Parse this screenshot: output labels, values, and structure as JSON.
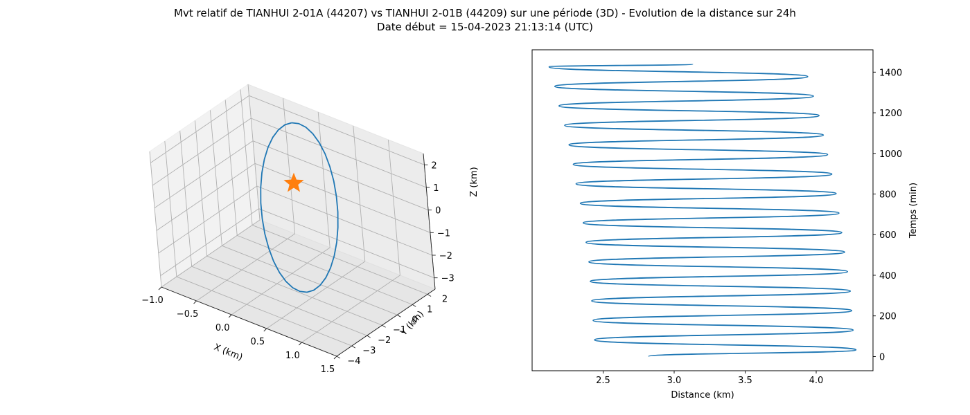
{
  "figure": {
    "title_line1": "Mvt relatif de TIANHUI 2-01A (44207) vs TIANHUI 2-01B (44209) sur une période (3D) - Evolution de la distance sur 24h",
    "title_line2": "Date début = 15-04-2023 21:13:14 (UTC)"
  },
  "chart_data": [
    {
      "type": "line3d",
      "title": "",
      "xlabel": "X (km)",
      "ylabel": "Y (km)",
      "zlabel": "Z (km)",
      "xticks": [
        "−1.0",
        "−0.5",
        "0.0",
        "0.5",
        "1.0",
        "1.5"
      ],
      "yticks": [
        "−4",
        "−3",
        "−2",
        "−1",
        "0",
        "1",
        "2"
      ],
      "zticks": [
        "−3",
        "−2",
        "−1",
        "0",
        "1",
        "2"
      ],
      "xlim": [
        -1.0,
        1.5
      ],
      "ylim": [
        -4,
        2.5
      ],
      "zlim": [
        -3.5,
        2.5
      ],
      "grid": true,
      "series": [
        {
          "color": "#1f77b4",
          "description": "relative orbit loop"
        }
      ],
      "marker": {
        "symbol": "star",
        "color": "#ff7f0e",
        "x": 0,
        "y": 0,
        "z": 0
      }
    },
    {
      "type": "line",
      "title": "",
      "xlabel": "Distance (km)",
      "ylabel": "Temps (min)",
      "xticks": [
        "2.5",
        "3.0",
        "3.5",
        "4.0"
      ],
      "yticks": [
        "0",
        "200",
        "400",
        "600",
        "800",
        "1000",
        "1200",
        "1400"
      ],
      "xlim": [
        2.0,
        4.4
      ],
      "ylim": [
        -70,
        1510
      ],
      "grid": false,
      "series": [
        {
          "color": "#1f77b4",
          "x": [
            2.82,
            4.28,
            2.44,
            4.26,
            2.43,
            4.25,
            2.42,
            4.24,
            2.41,
            4.22,
            2.4,
            4.2,
            2.38,
            4.18,
            2.36,
            4.16,
            2.34,
            4.14,
            2.31,
            4.11,
            2.29,
            4.08,
            2.26,
            4.05,
            2.23,
            4.02,
            2.19,
            3.98,
            2.16,
            3.94,
            2.12,
            3.13
          ],
          "y": [
            0,
            33,
            82,
            130,
            178,
            226,
            274,
            322,
            370,
            418,
            466,
            514,
            562,
            610,
            658,
            706,
            754,
            802,
            850,
            898,
            946,
            994,
            1042,
            1090,
            1138,
            1186,
            1234,
            1282,
            1330,
            1378,
            1426,
            1440
          ]
        }
      ]
    }
  ]
}
